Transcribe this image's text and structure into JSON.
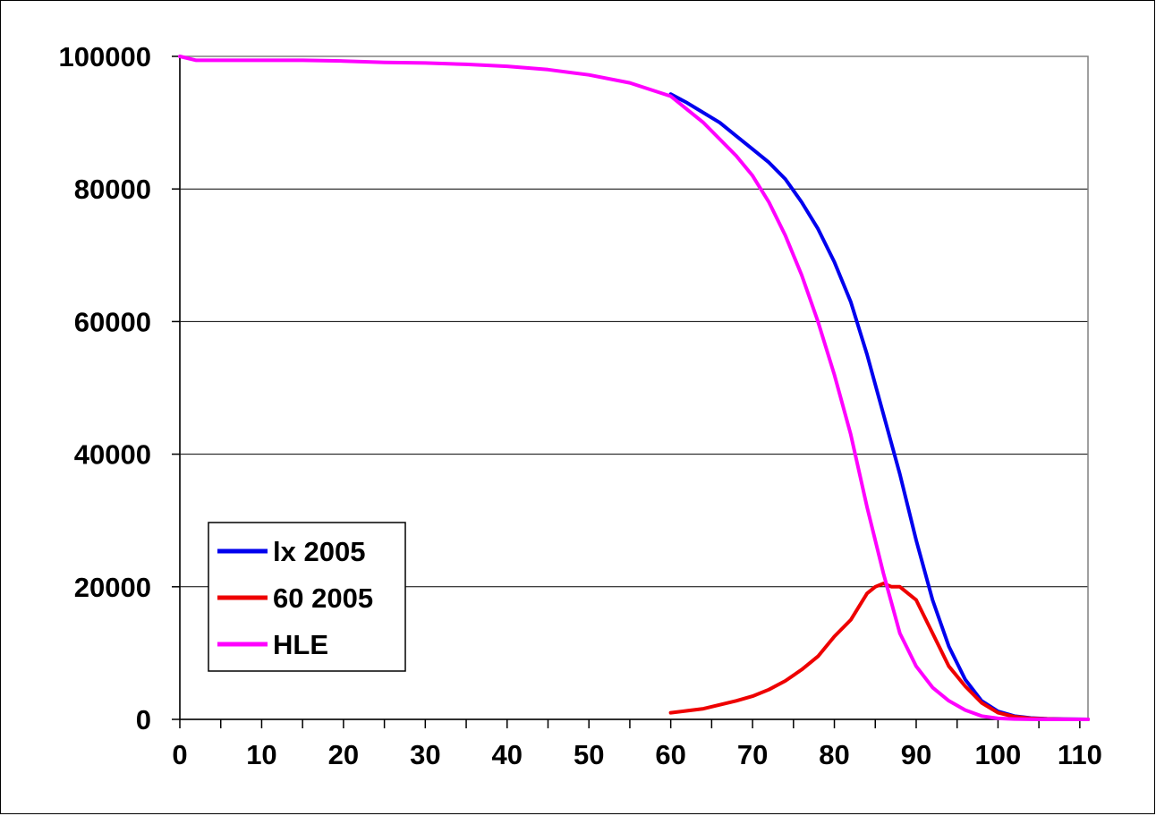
{
  "chart_data": {
    "type": "line",
    "title": "",
    "xlabel": "",
    "ylabel": "",
    "xlim": [
      0,
      111
    ],
    "ylim": [
      0,
      100000
    ],
    "x_ticks": [
      0,
      10,
      20,
      30,
      40,
      50,
      60,
      70,
      80,
      90,
      100,
      110
    ],
    "y_ticks": [
      0,
      20000,
      40000,
      60000,
      80000,
      100000
    ],
    "grid": "horizontal",
    "legend_position": "lower-left",
    "colors": {
      "lx 2005": "#0000ee",
      "60 2005": "#ee0000",
      "HLE": "#ff00ff"
    },
    "series": [
      {
        "name": "lx 2005",
        "x": [
          60,
          62,
          64,
          66,
          68,
          70,
          72,
          74,
          76,
          78,
          80,
          82,
          84,
          86,
          88,
          90,
          92,
          94,
          96,
          98,
          100,
          102,
          104,
          106,
          108,
          110,
          111
        ],
        "y": [
          94300,
          93000,
          91500,
          90000,
          88000,
          86000,
          84000,
          81500,
          78000,
          74000,
          69000,
          63000,
          55000,
          46000,
          37000,
          27000,
          18000,
          11000,
          6000,
          2800,
          1200,
          500,
          200,
          80,
          30,
          10,
          0
        ]
      },
      {
        "name": "60 2005",
        "x": [
          60,
          62,
          64,
          66,
          68,
          70,
          72,
          74,
          76,
          78,
          80,
          82,
          84,
          85,
          86,
          87,
          88,
          89,
          90,
          92,
          94,
          96,
          98,
          100,
          102,
          104,
          106,
          108,
          110,
          111
        ],
        "y": [
          1000,
          1300,
          1600,
          2200,
          2800,
          3500,
          4500,
          5800,
          7500,
          9500,
          12500,
          15000,
          19000,
          20000,
          20500,
          20000,
          20000,
          19000,
          18000,
          13000,
          8000,
          5000,
          2500,
          1000,
          400,
          150,
          50,
          20,
          5,
          0
        ]
      },
      {
        "name": "HLE",
        "x": [
          0,
          2,
          5,
          10,
          15,
          20,
          25,
          30,
          35,
          40,
          45,
          50,
          55,
          60,
          62,
          64,
          66,
          68,
          70,
          72,
          74,
          76,
          78,
          80,
          82,
          84,
          86,
          88,
          90,
          92,
          94,
          96,
          98,
          100,
          102,
          104,
          106,
          108,
          110,
          111
        ],
        "y": [
          100000,
          99400,
          99400,
          99400,
          99400,
          99300,
          99100,
          99000,
          98800,
          98500,
          98000,
          97200,
          96000,
          94000,
          92000,
          90000,
          87500,
          85000,
          82000,
          78000,
          73000,
          67000,
          60000,
          52000,
          43000,
          32000,
          22000,
          13000,
          8000,
          4800,
          2800,
          1400,
          500,
          150,
          50,
          20,
          5,
          0,
          0,
          0
        ]
      }
    ]
  }
}
